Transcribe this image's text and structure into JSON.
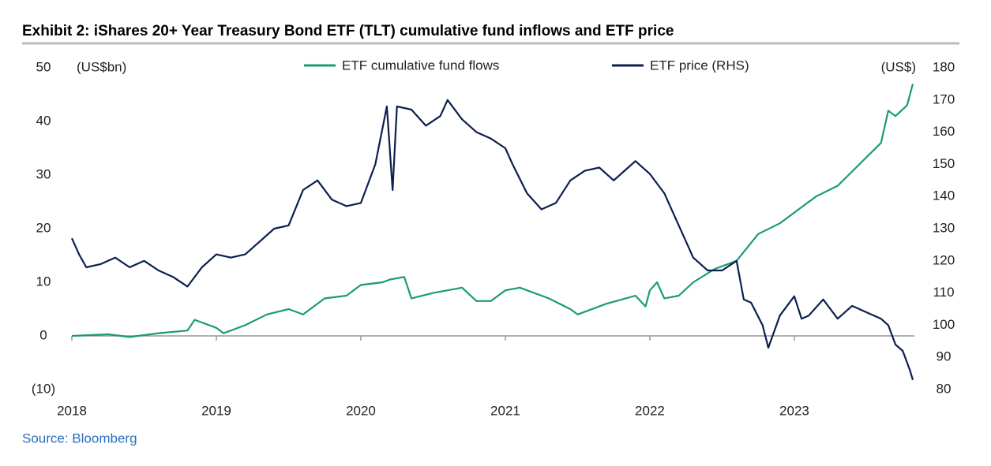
{
  "chart_data": {
    "type": "line",
    "title": "Exhibit 2: iShares 20+ Year Treasury Bond ETF (TLT) cumulative fund inflows and ETF price",
    "y_label": "(US$bn)",
    "y2_label": "(US$)",
    "source": "Source: Bloomberg",
    "xlim": [
      2018,
      2023.82
    ],
    "xticks": [
      2018,
      2019,
      2020,
      2021,
      2022,
      2023
    ],
    "ylim": [
      -10,
      50
    ],
    "yticks": [
      {
        "value": -10,
        "label": "(10)"
      },
      0,
      10,
      20,
      30,
      40,
      50
    ],
    "y2lim": [
      80,
      180
    ],
    "y2ticks": [
      80,
      90,
      100,
      110,
      120,
      130,
      140,
      150,
      160,
      170,
      180
    ],
    "grid": false,
    "legend": "top",
    "series": [
      {
        "name": "ETF cumulative fund flows",
        "color": "#1a9a78",
        "x": [
          2018.0,
          2018.25,
          2018.4,
          2018.6,
          2018.8,
          2018.85,
          2019.0,
          2019.05,
          2019.2,
          2019.35,
          2019.5,
          2019.6,
          2019.75,
          2019.9,
          2020.0,
          2020.15,
          2020.2,
          2020.3,
          2020.35,
          2020.5,
          2020.7,
          2020.8,
          2020.9,
          2021.0,
          2021.1,
          2021.3,
          2021.45,
          2021.5,
          2021.7,
          2021.9,
          2021.97,
          2022.0,
          2022.05,
          2022.1,
          2022.2,
          2022.3,
          2022.45,
          2022.6,
          2022.75,
          2022.9,
          2023.0,
          2023.15,
          2023.3,
          2023.45,
          2023.6,
          2023.65,
          2023.7,
          2023.78,
          2023.82
        ],
        "values": [
          0,
          0.3,
          -0.2,
          0.5,
          1,
          3,
          1.5,
          0.5,
          2,
          4,
          5,
          4,
          7,
          7.5,
          9.5,
          10,
          10.5,
          11,
          7,
          8,
          9,
          6.5,
          6.5,
          8.5,
          9,
          7,
          5,
          4,
          6,
          7.5,
          5.5,
          8.5,
          10,
          7,
          7.5,
          10,
          12.5,
          14,
          19,
          21,
          23,
          26,
          28,
          32,
          36,
          42,
          41,
          43,
          47
        ]
      },
      {
        "name": "ETF price (RHS)",
        "color": "#0b1f4f",
        "axis": "y2",
        "x": [
          2018.0,
          2018.05,
          2018.1,
          2018.2,
          2018.3,
          2018.4,
          2018.5,
          2018.6,
          2018.7,
          2018.8,
          2018.9,
          2019.0,
          2019.1,
          2019.2,
          2019.3,
          2019.4,
          2019.5,
          2019.6,
          2019.7,
          2019.8,
          2019.9,
          2020.0,
          2020.1,
          2020.18,
          2020.22,
          2020.25,
          2020.35,
          2020.45,
          2020.55,
          2020.6,
          2020.7,
          2020.8,
          2020.9,
          2021.0,
          2021.05,
          2021.15,
          2021.25,
          2021.35,
          2021.45,
          2021.55,
          2021.65,
          2021.75,
          2021.85,
          2021.9,
          2022.0,
          2022.1,
          2022.2,
          2022.3,
          2022.4,
          2022.5,
          2022.6,
          2022.65,
          2022.7,
          2022.78,
          2022.82,
          2022.9,
          2023.0,
          2023.05,
          2023.1,
          2023.2,
          2023.3,
          2023.4,
          2023.5,
          2023.6,
          2023.65,
          2023.7,
          2023.75,
          2023.8,
          2023.82
        ],
        "values": [
          127,
          122,
          118,
          119,
          121,
          118,
          120,
          117,
          115,
          112,
          118,
          122,
          121,
          122,
          126,
          130,
          131,
          142,
          145,
          139,
          137,
          138,
          150,
          168,
          142,
          168,
          167,
          162,
          165,
          170,
          164,
          160,
          158,
          155,
          150,
          141,
          136,
          138,
          145,
          148,
          149,
          145,
          149,
          151,
          147,
          141,
          131,
          121,
          117,
          117,
          120,
          108,
          107,
          100,
          93,
          103,
          109,
          102,
          103,
          108,
          102,
          106,
          104,
          102,
          100,
          94,
          92,
          86,
          83
        ]
      }
    ]
  }
}
